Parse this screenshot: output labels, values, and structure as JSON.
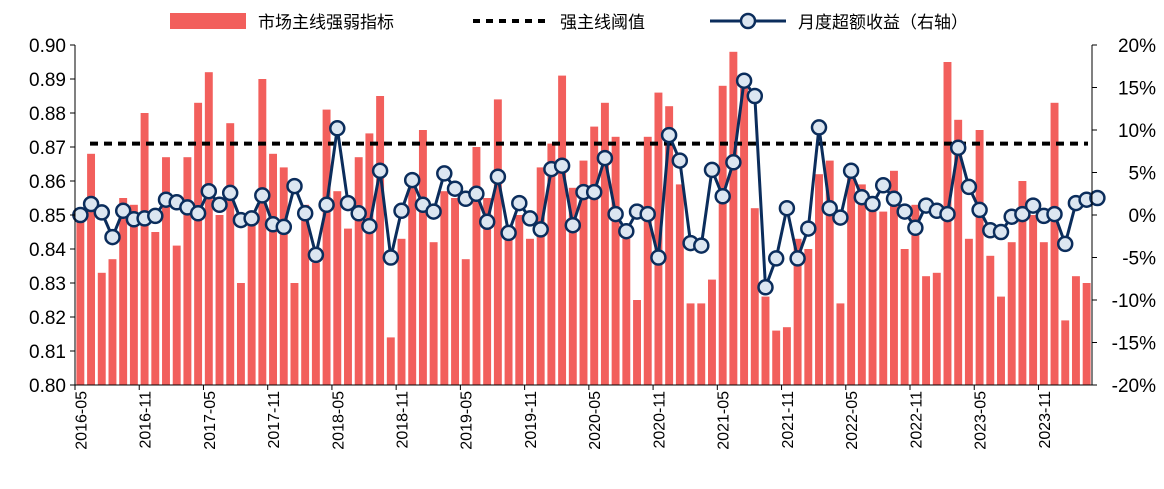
{
  "chart_data": {
    "type": "bar+line",
    "title": "",
    "legend": {
      "position": "top",
      "bar_label": "市场主线强弱指标",
      "threshold_label": "强主线阈值",
      "line_label": "月度超额收益（右轴）"
    },
    "colors": {
      "bar": "#F25F5C",
      "threshold": "#000000",
      "line": "#0B2D5C",
      "marker_fill": "#DCE6F1"
    },
    "x_tick_labels": [
      "2016-05",
      "2016-11",
      "2017-05",
      "2017-11",
      "2018-05",
      "2018-11",
      "2019-05",
      "2019-11",
      "2020-05",
      "2020-11",
      "2021-05",
      "2021-11",
      "2022-05",
      "2022-11",
      "2023-05",
      "2023-11"
    ],
    "left_axis": {
      "ylim": [
        0.8,
        0.9
      ],
      "ticks": [
        "0.80",
        "0.81",
        "0.82",
        "0.83",
        "0.84",
        "0.85",
        "0.86",
        "0.87",
        "0.88",
        "0.89",
        "0.90"
      ]
    },
    "right_axis": {
      "ylim": [
        -20,
        20
      ],
      "ticks": [
        "-20%",
        "-15%",
        "-10%",
        "-5%",
        "0%",
        "5%",
        "10%",
        "15%",
        "20%"
      ]
    },
    "threshold": 0.871,
    "bar_values": [
      0.85,
      0.868,
      0.833,
      0.837,
      0.855,
      0.853,
      0.88,
      0.845,
      0.867,
      0.841,
      0.867,
      0.883,
      0.892,
      0.85,
      0.877,
      0.83,
      0.85,
      0.89,
      0.868,
      0.864,
      0.83,
      0.853,
      0.836,
      0.881,
      0.857,
      0.846,
      0.867,
      0.874,
      0.885,
      0.814,
      0.843,
      0.858,
      0.875,
      0.842,
      0.857,
      0.855,
      0.837,
      0.87,
      0.855,
      0.884,
      0.843,
      0.85,
      0.843,
      0.864,
      0.871,
      0.891,
      0.858,
      0.866,
      0.876,
      0.883,
      0.873,
      0.843,
      0.825,
      0.873,
      0.886,
      0.882,
      0.859,
      0.824,
      0.824,
      0.831,
      0.888,
      0.898,
      0.891,
      0.852,
      0.826,
      0.816,
      0.817,
      0.843,
      0.84,
      0.862,
      0.866,
      0.824,
      0.862,
      0.859,
      0.851,
      0.851,
      0.863,
      0.84,
      0.853,
      0.832,
      0.833,
      0.895,
      0.878,
      0.843,
      0.875,
      0.838,
      0.826,
      0.842,
      0.86,
      0.85,
      0.842,
      0.883,
      0.819,
      0.832,
      0.83
    ],
    "line_values": [
      0.0,
      1.3,
      0.3,
      -2.6,
      0.5,
      -0.5,
      -0.4,
      -0.1,
      1.8,
      1.5,
      0.9,
      0.2,
      2.8,
      1.2,
      2.6,
      -0.6,
      -0.4,
      2.3,
      -1.1,
      -1.4,
      3.4,
      0.2,
      -4.7,
      1.2,
      10.2,
      1.4,
      0.2,
      -1.3,
      5.2,
      -5.0,
      0.5,
      4.1,
      1.2,
      0.4,
      4.9,
      3.1,
      1.9,
      2.5,
      -0.8,
      4.5,
      -2.1,
      1.4,
      -0.4,
      -1.7,
      5.4,
      5.8,
      -1.2,
      2.7,
      2.7,
      6.7,
      0.1,
      -1.9,
      0.4,
      0.1,
      -5.0,
      9.4,
      6.4,
      -3.3,
      -3.6,
      5.3,
      2.2,
      6.2,
      15.8,
      14.0,
      -8.5,
      -5.1,
      0.8,
      -5.1,
      -1.6,
      10.3,
      0.8,
      -0.3,
      5.2,
      2.1,
      1.3,
      3.5,
      1.9,
      0.4,
      -1.5,
      1.1,
      0.5,
      0.1,
      7.9,
      3.3,
      0.6,
      -1.8,
      -2.0,
      -0.2,
      0.1,
      1.1,
      -0.1,
      0.1,
      -3.4,
      1.4,
      1.8,
      2.0
    ]
  }
}
